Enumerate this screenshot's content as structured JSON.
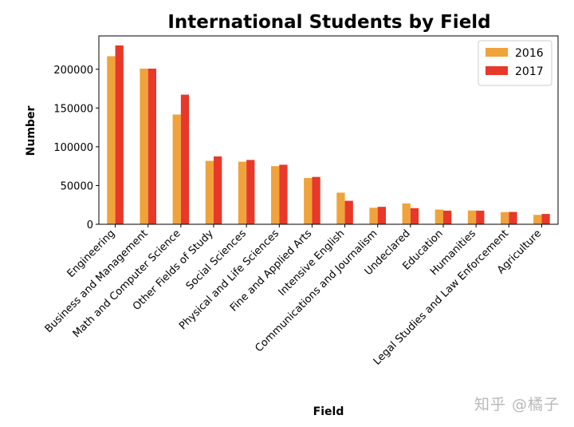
{
  "chart_data": {
    "type": "bar",
    "title": "International Students by Field",
    "xlabel": "Field",
    "ylabel": "Number",
    "categories": [
      "Engineering",
      "Business and Management",
      "Math and Computer Science",
      "Other Fields of Study",
      "Social Sciences",
      "Physical and Life Sciences",
      "Fine and Applied Arts",
      "Intensive English",
      "Communications and Journalism",
      "Undeclared",
      "Education",
      "Humanities",
      "Legal Studies and Law Enforcement",
      "Agriculture"
    ],
    "series": [
      {
        "name": "2016",
        "color": "#f0a33a",
        "values": [
          216800,
          200800,
          141600,
          81800,
          80700,
          75000,
          59700,
          40800,
          21300,
          26900,
          19000,
          17800,
          15700,
          12100
        ]
      },
      {
        "name": "2017",
        "color": "#e8382a",
        "values": [
          230700,
          200800,
          167200,
          87500,
          83000,
          76800,
          61100,
          30300,
          22500,
          20800,
          17600,
          17600,
          15900,
          13300
        ]
      }
    ],
    "ylim": [
      0,
      243000
    ],
    "yticks": [
      0,
      50000,
      100000,
      150000,
      200000
    ],
    "ytick_labels": [
      "0",
      "50000",
      "100000",
      "150000",
      "200000"
    ],
    "legend_position": "top-right",
    "grid": false
  },
  "watermark": "知乎 @橘子"
}
